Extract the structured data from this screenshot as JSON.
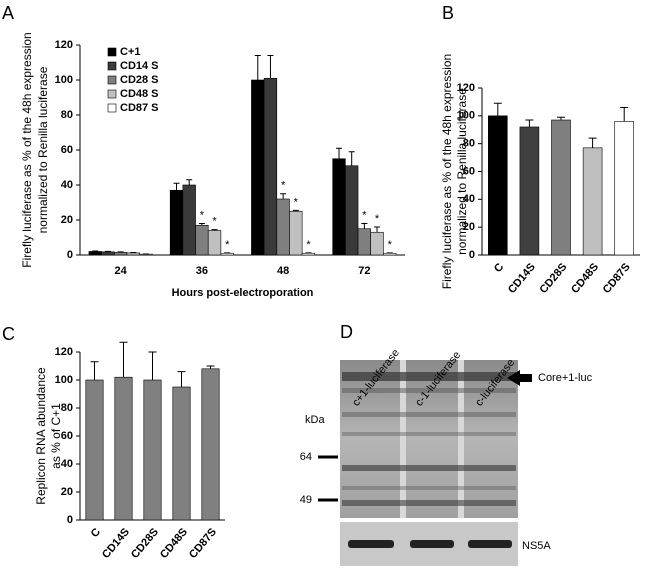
{
  "chart_data": [
    {
      "type": "bar",
      "panel": "A",
      "ylabel": [
        "Firefly luciferase as % of the 48h expression",
        "normalized to Renilla luciferase"
      ],
      "xlabel": "Hours post-electroporation",
      "categories": [
        "24",
        "36",
        "48",
        "72"
      ],
      "series": [
        {
          "name": "C+1",
          "color": "#000000",
          "values": [
            2,
            37,
            100,
            55
          ],
          "errors": [
            0.3,
            4,
            14,
            6
          ],
          "annotations": [
            null,
            null,
            null,
            null
          ]
        },
        {
          "name": "CD14 S",
          "color": "#3a3a3a",
          "values": [
            1.8,
            40,
            101,
            51
          ],
          "errors": [
            0.3,
            3,
            13,
            8
          ],
          "annotations": [
            null,
            null,
            null,
            null
          ]
        },
        {
          "name": "CD28 S",
          "color": "#7f7f7f",
          "values": [
            1.5,
            17,
            32,
            15
          ],
          "errors": [
            0.3,
            1,
            3,
            3
          ],
          "annotations": [
            null,
            "*",
            "*",
            "*"
          ]
        },
        {
          "name": "CD48 S",
          "color": "#c0c0c0",
          "values": [
            1.2,
            14,
            25,
            13
          ],
          "errors": [
            0.2,
            0.5,
            0.5,
            3
          ],
          "annotations": [
            null,
            "*",
            "*",
            "*"
          ]
        },
        {
          "name": "CD87 S",
          "color": "#ffffff",
          "values": [
            0.5,
            1,
            1,
            1
          ],
          "errors": [
            0.1,
            0.2,
            0.2,
            0.2
          ],
          "annotations": [
            null,
            "*",
            "*",
            "*"
          ]
        }
      ],
      "ylim": [
        0,
        120
      ],
      "yticks": [
        0,
        20,
        40,
        60,
        80,
        100,
        120
      ],
      "legend": "upper left"
    },
    {
      "type": "bar",
      "panel": "B",
      "ylabel": [
        "Firefly luciferase as % of the 48h expression",
        "normalized to Renilla luciferase"
      ],
      "categories": [
        "C",
        "CD14S",
        "CD28S",
        "CD48S",
        "CD87S"
      ],
      "values": [
        100,
        92,
        97,
        77,
        96
      ],
      "errors": [
        9,
        5,
        2,
        7,
        10
      ],
      "colors": [
        "#000000",
        "#404040",
        "#7f7f7f",
        "#bfbfbf",
        "#ffffff"
      ],
      "ylim": [
        0,
        120
      ],
      "yticks": [
        0,
        20,
        40,
        60,
        80,
        100,
        120
      ]
    },
    {
      "type": "bar",
      "panel": "C",
      "ylabel": [
        "Replicon RNA abundance",
        "as % of C+1"
      ],
      "categories": [
        "C",
        "CD14S",
        "CD28S",
        "CD48S",
        "CD87S"
      ],
      "values": [
        100,
        102,
        100,
        95,
        108
      ],
      "errors": [
        13,
        25,
        20,
        11,
        2
      ],
      "colors": [
        "#808080",
        "#808080",
        "#808080",
        "#808080",
        "#808080"
      ],
      "ylim": [
        0,
        120
      ],
      "yticks": [
        0,
        20,
        40,
        60,
        80,
        100,
        120
      ]
    }
  ],
  "blot": {
    "panel": "D",
    "lanes": [
      "c+1-luciferase",
      "c-1-luciferase",
      "c-luciferase"
    ],
    "unit": "kDa",
    "markers": [
      "64",
      "49"
    ],
    "band_label": "Core+1-luc",
    "loading_label": "NS5A"
  }
}
